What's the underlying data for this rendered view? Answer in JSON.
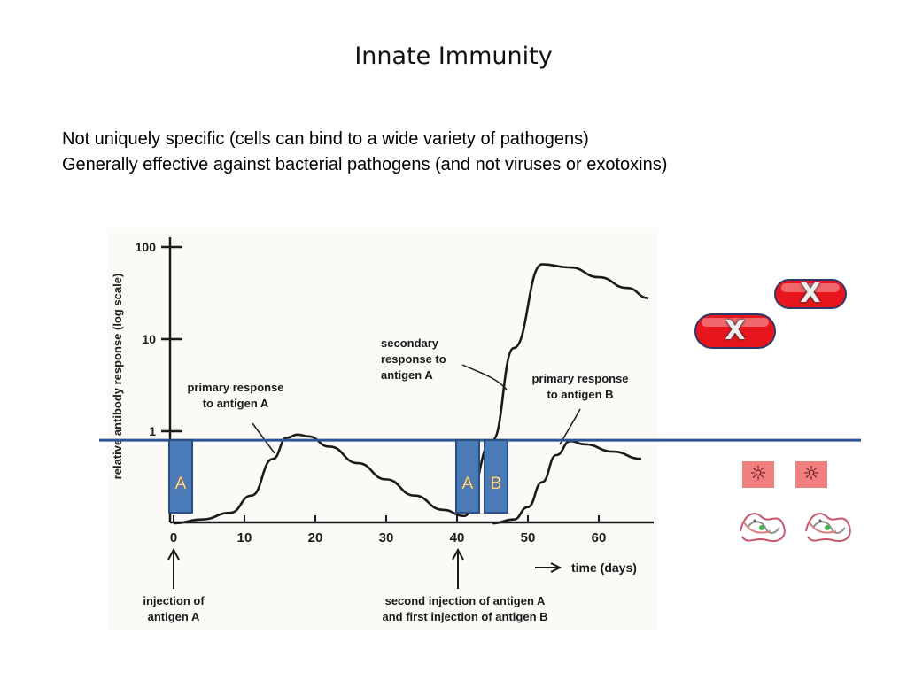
{
  "slide": {
    "title": "Innate Immunity",
    "bullets": [
      "Not uniquely specific (cells can bind to a wide variety of pathogens)",
      "Generally effective against bacterial pathogens (and not viruses or exotoxins)"
    ]
  },
  "chart_data": {
    "type": "line",
    "ylabel": "relative antibody response (log scale)",
    "yscale": "log",
    "ylim": [
      0.1,
      100
    ],
    "yticks": [
      "100",
      "10",
      "1"
    ],
    "xticks": [
      "0",
      "10",
      "20",
      "30",
      "40",
      "50",
      "60"
    ],
    "xlim": [
      0,
      67
    ],
    "xlabel": "time (days)",
    "grid": false,
    "series": [
      {
        "x": [
          0,
          4,
          8,
          11,
          14,
          16,
          17.5,
          19,
          22,
          26,
          30,
          34,
          38,
          41
        ],
        "y": [
          0.1,
          0.11,
          0.13,
          0.2,
          0.5,
          0.85,
          0.92,
          0.88,
          0.68,
          0.45,
          0.3,
          0.2,
          0.14,
          0.12
        ]
      },
      {
        "x": [
          41,
          45,
          48,
          52,
          56,
          60,
          64,
          67
        ],
        "y": [
          0.12,
          0.8,
          8,
          65,
          60,
          47,
          36,
          28
        ]
      },
      {
        "x": [
          45,
          48,
          50,
          52,
          54,
          56,
          58,
          62,
          66
        ],
        "y": [
          0.1,
          0.11,
          0.15,
          0.28,
          0.55,
          0.78,
          0.72,
          0.6,
          0.5
        ]
      }
    ],
    "annotations": [
      {
        "text": "primary response to antigen A",
        "lines": [
          "primary response",
          "to antigen A"
        ]
      },
      {
        "text": "secondary response to antigen A",
        "lines": [
          "secondary",
          "response to",
          "antigen A"
        ]
      },
      {
        "text": "primary response to antigen B",
        "lines": [
          "primary response",
          "to antigen B"
        ]
      },
      {
        "text": "injection of antigen A",
        "lines": [
          "injection of",
          "antigen A"
        ]
      },
      {
        "text": "second injection of antigen A and first injection of antigen B",
        "lines": [
          "second injection of antigen A",
          "and first injection of antigen B"
        ]
      }
    ],
    "overlay_blocks": [
      {
        "label": "A",
        "day": 1
      },
      {
        "label": "A",
        "day": 41.5
      },
      {
        "label": "B",
        "day": 45.5
      }
    ],
    "threshold_line": {
      "y": 0.8
    }
  },
  "side": {
    "pill_icon": "bacterium-x-icon",
    "virus_icon": "virus-icon",
    "protein_icon": "protein-structure-icon",
    "virus_glyph": "☼"
  },
  "colors": {
    "block_fill": "#4a7ab8",
    "block_stroke": "#2b4f80",
    "threshold": "#2f5496",
    "pill": "#e8161c",
    "virus_box": "#f08080"
  }
}
